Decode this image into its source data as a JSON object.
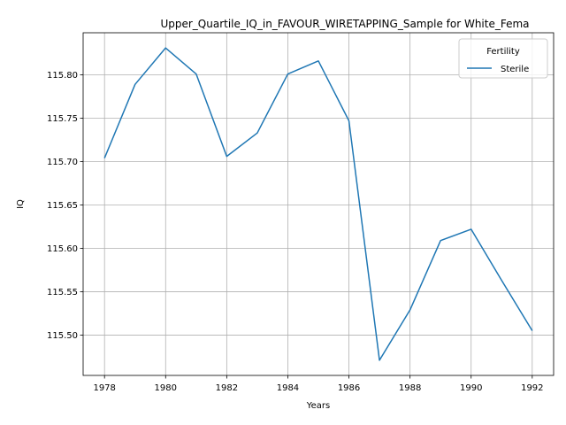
{
  "chart_data": {
    "type": "line",
    "title": "Upper_Quartile_IQ_in_FAVOUR_WIRETAPPING_Sample for White_Fema",
    "xlabel": "Years",
    "ylabel": "IQ",
    "x": [
      1978,
      1979,
      1980,
      1981,
      1982,
      1983,
      1984,
      1985,
      1986,
      1987,
      1988,
      1989,
      1990,
      1991,
      1992
    ],
    "series": [
      {
        "name": "Sterile",
        "color": "#1f77b4",
        "values": [
          115.704,
          115.789,
          115.831,
          115.801,
          115.706,
          115.733,
          115.801,
          115.816,
          115.747,
          115.471,
          115.529,
          115.609,
          115.622,
          115.563,
          115.505
        ]
      }
    ],
    "xlim": [
      1977.3,
      1992.7
    ],
    "ylim": [
      115.4535,
      115.8485
    ],
    "xticks": [
      1978,
      1980,
      1982,
      1984,
      1986,
      1988,
      1990,
      1992
    ],
    "yticks": [
      "115.50",
      "115.55",
      "115.60",
      "115.65",
      "115.70",
      "115.75",
      "115.80"
    ],
    "grid": true,
    "legend": {
      "title": "Fertility",
      "position": "top-right"
    }
  }
}
